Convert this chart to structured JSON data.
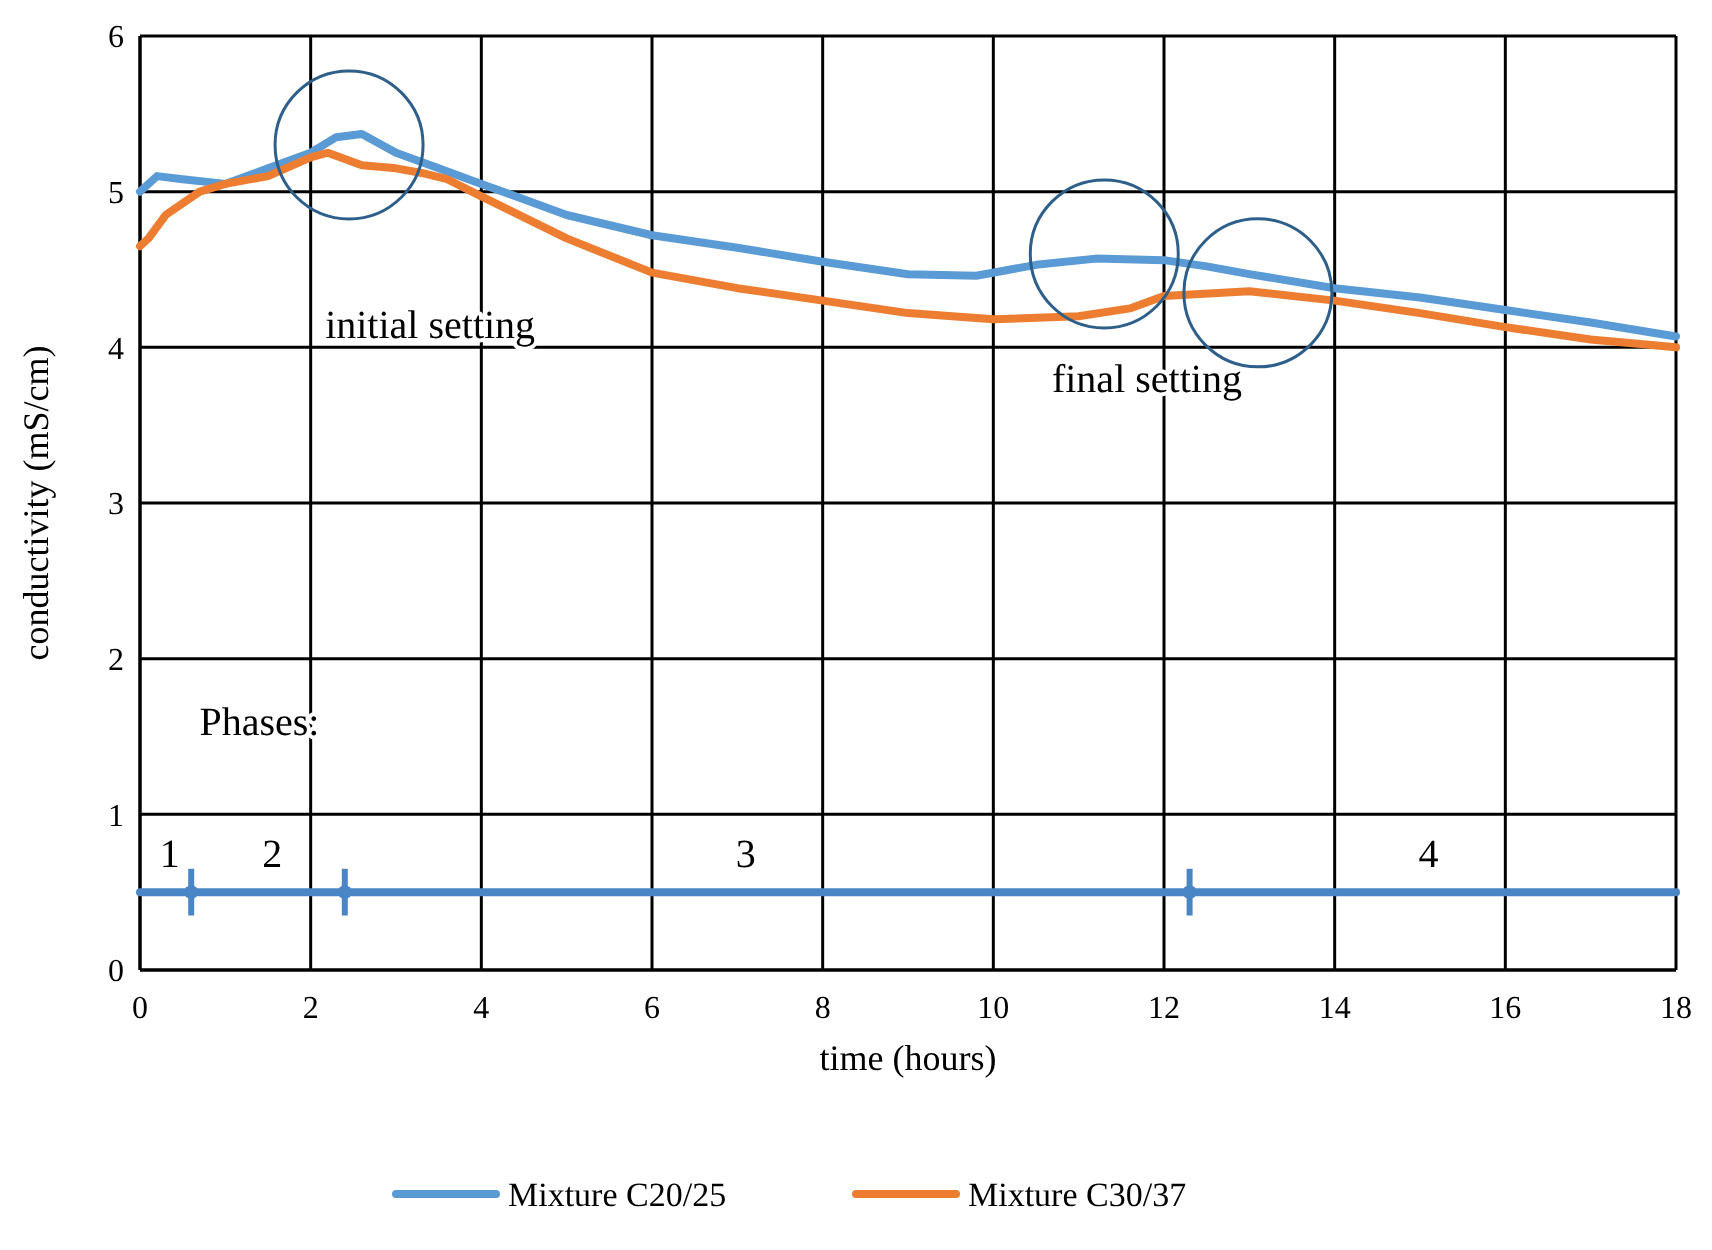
{
  "chart_data": {
    "type": "line",
    "xlabel": "time (hours)",
    "ylabel": "conductivity (mS/cm)",
    "xlim": [
      0,
      18
    ],
    "ylim": [
      0,
      6
    ],
    "xticks": [
      0,
      2,
      4,
      6,
      8,
      10,
      12,
      14,
      16,
      18
    ],
    "yticks": [
      0,
      1,
      2,
      3,
      4,
      5,
      6
    ],
    "grid": true,
    "legend": "bottom",
    "series": [
      {
        "name": "Mixture C20/25",
        "color": "#5b9bd5",
        "x": [
          0,
          0.2,
          0.5,
          1,
          1.5,
          2,
          2.3,
          2.6,
          3,
          3.5,
          4,
          5,
          6,
          7,
          8,
          9,
          9.8,
          10.5,
          11.2,
          12,
          12.5,
          13,
          14,
          15,
          16,
          17,
          18
        ],
        "values": [
          5.0,
          5.1,
          5.08,
          5.05,
          5.15,
          5.25,
          5.35,
          5.37,
          5.25,
          5.15,
          5.05,
          4.85,
          4.72,
          4.64,
          4.55,
          4.47,
          4.46,
          4.53,
          4.57,
          4.56,
          4.52,
          4.47,
          4.38,
          4.32,
          4.24,
          4.16,
          4.07
        ]
      },
      {
        "name": "Mixture C30/37",
        "color": "#ed7d31",
        "x": [
          0,
          0.1,
          0.3,
          0.7,
          1,
          1.5,
          2,
          2.2,
          2.6,
          3,
          3.3,
          3.6,
          4,
          5,
          6,
          7,
          8,
          9,
          10,
          11,
          11.6,
          12,
          13,
          14,
          15,
          16,
          17,
          18
        ],
        "values": [
          4.65,
          4.7,
          4.85,
          5.0,
          5.05,
          5.1,
          5.22,
          5.25,
          5.17,
          5.15,
          5.12,
          5.08,
          4.97,
          4.7,
          4.48,
          4.38,
          4.3,
          4.22,
          4.18,
          4.2,
          4.25,
          4.33,
          4.36,
          4.3,
          4.22,
          4.13,
          4.05,
          4.0
        ]
      },
      {
        "type": "line",
        "color": "#4a86c6",
        "x": [
          0,
          18
        ],
        "values": [
          0.5,
          0.5
        ]
      },
      {
        "type": "scatter",
        "color": "#4a86c6",
        "x": [
          0.6,
          2.4,
          12.3
        ],
        "values": [
          0.5,
          0.5,
          0.5
        ],
        "errors": [
          0.15,
          0.15,
          0.15
        ]
      }
    ],
    "annotations": [
      "initial setting",
      "final setting",
      "Phases:",
      "1",
      "2",
      "3",
      "4"
    ]
  }
}
